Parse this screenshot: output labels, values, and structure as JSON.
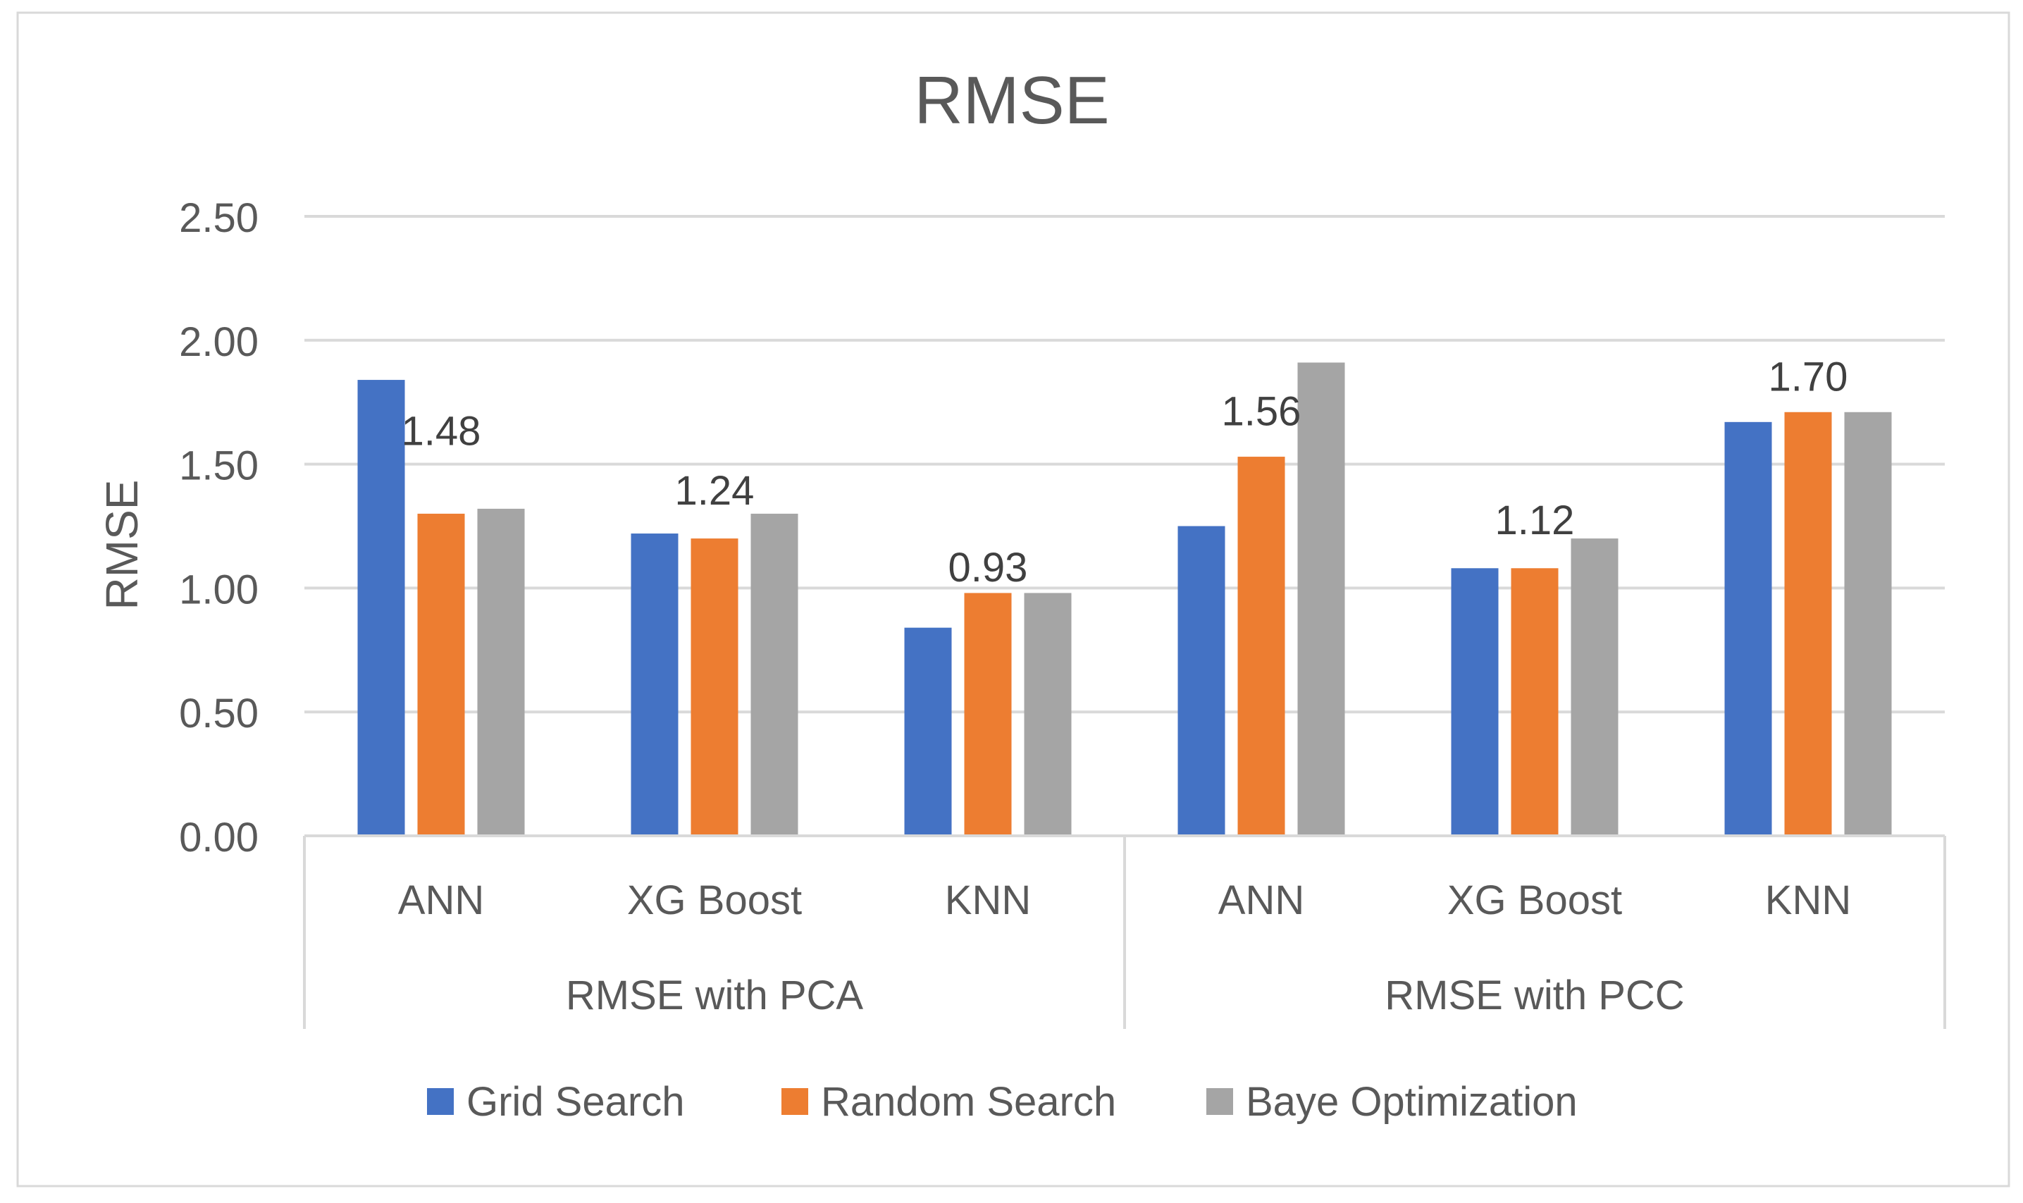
{
  "chart_data": {
    "type": "bar",
    "title": "RMSE",
    "xlabel": "",
    "ylabel": "RMSE",
    "ylim": [
      0,
      2.5
    ],
    "yticks": [
      "0.00",
      "0.50",
      "1.00",
      "1.50",
      "2.00",
      "2.50"
    ],
    "grid": true,
    "legend_position": "bottom",
    "groups": [
      {
        "label": "RMSE with PCA",
        "categories": [
          "ANN",
          "XG Boost",
          "KNN"
        ]
      },
      {
        "label": "RMSE with PCC",
        "categories": [
          "ANN",
          "XG Boost",
          "KNN"
        ]
      }
    ],
    "categories": [
      "ANN",
      "XG Boost",
      "KNN",
      "ANN",
      "XG Boost",
      "KNN"
    ],
    "series": [
      {
        "name": "Grid Search",
        "color": "#4472C4",
        "values": [
          1.84,
          1.22,
          0.84,
          1.25,
          1.08,
          1.67
        ]
      },
      {
        "name": "Random Search",
        "color": "#ED7D31",
        "values": [
          1.3,
          1.2,
          0.98,
          1.53,
          1.08,
          1.71
        ]
      },
      {
        "name": "Baye Optimization",
        "color": "#A5A5A5",
        "values": [
          1.32,
          1.3,
          0.98,
          1.91,
          1.2,
          1.71
        ]
      }
    ],
    "annotations": [
      "1.48",
      "1.24",
      "0.93",
      "1.56",
      "1.12",
      "1.70"
    ]
  }
}
